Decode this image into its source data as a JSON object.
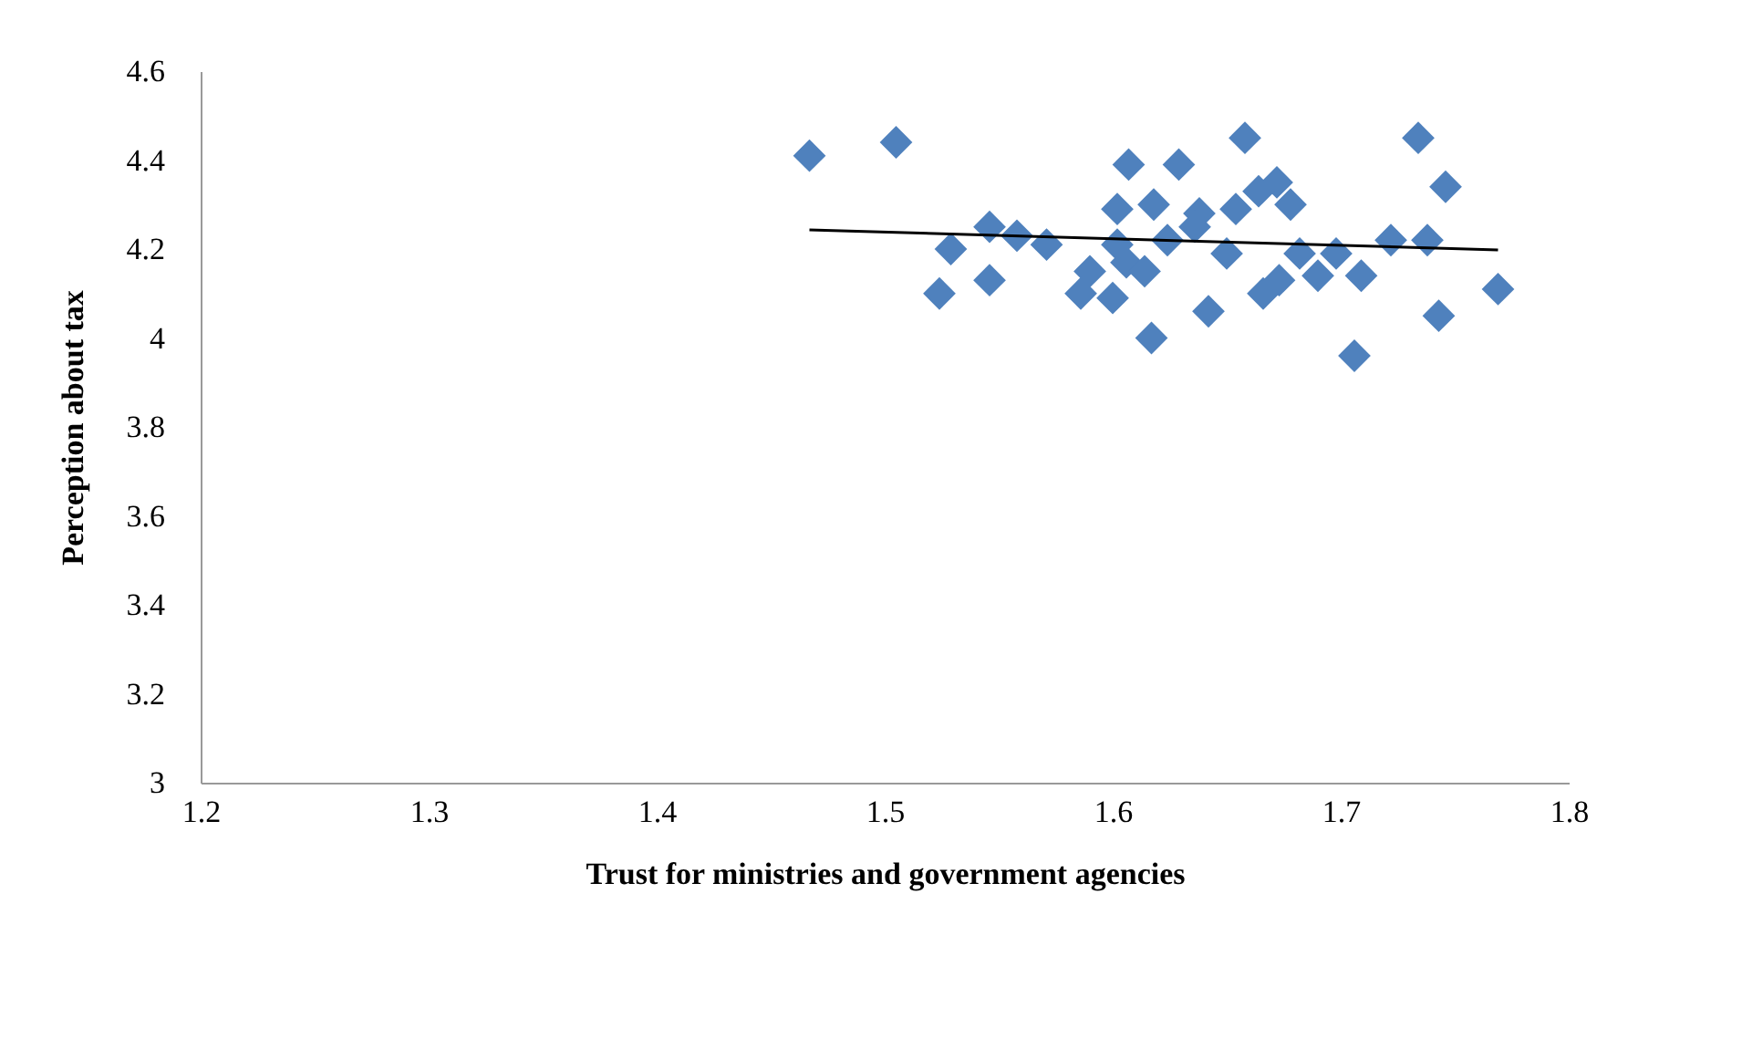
{
  "chart_data": {
    "type": "scatter",
    "xlabel": "Trust for ministries and government agencies",
    "ylabel": "Perception about tax",
    "xlim": [
      1.2,
      1.8
    ],
    "xticks": [
      1.2,
      1.3,
      1.4,
      1.5,
      1.6,
      1.7,
      1.8
    ],
    "ylim": [
      3,
      4.6
    ],
    "yticks": [
      3,
      3.2,
      3.4,
      3.6,
      3.8,
      4,
      4.2,
      4.4,
      4.6
    ],
    "grid": false,
    "series": [
      {
        "color": "#4f81bd",
        "marker": "diamond",
        "x": [
          1.467,
          1.505,
          1.524,
          1.529,
          1.546,
          1.546,
          1.558,
          1.571,
          1.59,
          1.586,
          1.6,
          1.602,
          1.607,
          1.618,
          1.617,
          1.606,
          1.614,
          1.602,
          1.629,
          1.658,
          1.734,
          1.746,
          1.638,
          1.654,
          1.672,
          1.664,
          1.678,
          1.624,
          1.65,
          1.642,
          1.666,
          1.673,
          1.682,
          1.69,
          1.698,
          1.709,
          1.706,
          1.722,
          1.738,
          1.743,
          1.769,
          1.636
        ],
        "values": [
          4.41,
          4.44,
          4.1,
          4.2,
          4.25,
          4.13,
          4.23,
          4.21,
          4.15,
          4.1,
          4.09,
          4.29,
          4.39,
          4.3,
          4.0,
          4.17,
          4.15,
          4.21,
          4.39,
          4.45,
          4.45,
          4.34,
          4.28,
          4.29,
          4.35,
          4.33,
          4.3,
          4.22,
          4.19,
          4.06,
          4.1,
          4.13,
          4.19,
          4.14,
          4.19,
          4.14,
          3.96,
          4.22,
          4.22,
          4.05,
          4.11,
          4.25
        ]
      },
      {
        "type": "line",
        "color": "#000000",
        "marker": "none",
        "line_style": "solid",
        "x": [
          1.467,
          1.769
        ],
        "values": [
          4.243,
          4.198
        ]
      }
    ]
  }
}
